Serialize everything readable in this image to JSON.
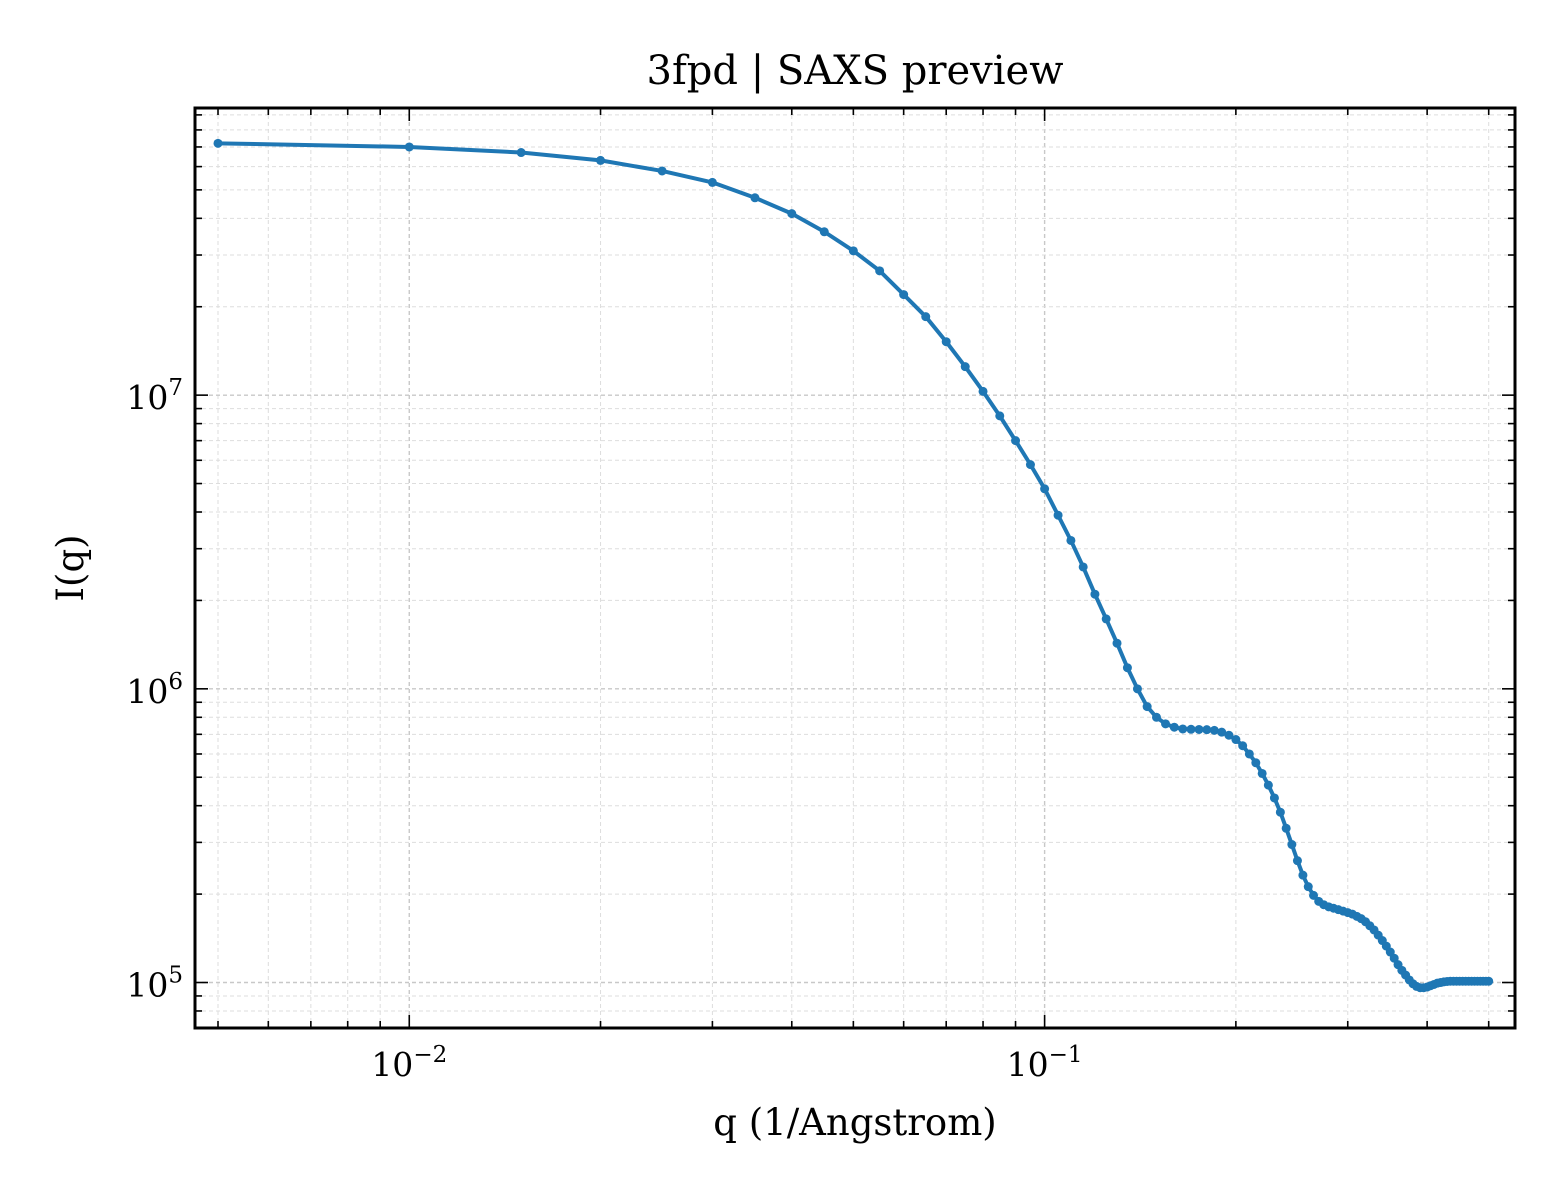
{
  "chart_data": {
    "type": "line",
    "title": "3fpd | SAXS preview",
    "xlabel": "q (1/Angstrom)",
    "ylabel": "I(q)",
    "xscale": "log",
    "yscale": "log",
    "xlim": [
      0.0046,
      0.55
    ],
    "ylim": [
      70000,
      95000000
    ],
    "grid": true,
    "grid_style": "dashed, major and minor",
    "legend": "none",
    "x_ticks": [
      {
        "base": "10",
        "exp": "−2"
      },
      {
        "base": "10",
        "exp": "−1"
      }
    ],
    "y_ticks": [
      {
        "base": "10",
        "exp": "5"
      },
      {
        "base": "10",
        "exp": "6"
      },
      {
        "base": "10",
        "exp": "7"
      }
    ],
    "color": "#1f77b4",
    "series": [
      {
        "x": [
          0.005,
          0.01,
          0.015,
          0.02,
          0.025,
          0.03,
          0.035,
          0.04,
          0.045,
          0.05,
          0.055,
          0.06,
          0.065,
          0.07,
          0.075,
          0.08,
          0.085,
          0.09,
          0.095,
          0.1,
          0.105,
          0.11,
          0.115,
          0.12,
          0.125,
          0.13,
          0.135,
          0.14,
          0.145,
          0.15,
          0.155,
          0.16,
          0.165,
          0.17,
          0.175,
          0.18,
          0.185,
          0.19,
          0.195,
          0.2,
          0.205,
          0.21,
          0.215,
          0.22,
          0.225,
          0.23,
          0.235,
          0.24,
          0.245,
          0.25,
          0.255,
          0.26,
          0.265,
          0.27,
          0.275,
          0.28,
          0.285,
          0.29,
          0.295,
          0.3,
          0.305,
          0.31,
          0.315,
          0.32,
          0.325,
          0.33,
          0.335,
          0.34,
          0.345,
          0.35,
          0.355,
          0.36,
          0.365,
          0.37,
          0.375,
          0.38,
          0.385,
          0.39,
          0.395,
          0.4,
          0.405,
          0.41,
          0.415,
          0.42,
          0.425,
          0.43,
          0.435,
          0.44,
          0.445,
          0.45,
          0.455,
          0.46,
          0.465,
          0.47,
          0.475,
          0.48,
          0.485,
          0.49,
          0.495,
          0.5
        ],
        "y": [
          72000000,
          70000000,
          67000000,
          63000000,
          58000000,
          53000000,
          47000000,
          41500000,
          36000000,
          31000000,
          26500000,
          22000000,
          18500000,
          15200000,
          12500000,
          10300000,
          8500000,
          7000000,
          5800000,
          4800000,
          3900000,
          3200000,
          2600000,
          2100000,
          1730000,
          1430000,
          1180000,
          1000000,
          870000,
          800000,
          760000,
          740000,
          730000,
          728000,
          727000,
          726000,
          722000,
          712000,
          695000,
          672000,
          640000,
          600000,
          560000,
          515000,
          470000,
          425000,
          380000,
          335000,
          295000,
          260000,
          232000,
          212000,
          198000,
          189000,
          184000,
          181000,
          179000,
          177000,
          175000,
          173000,
          171000,
          168000,
          165000,
          161000,
          156000,
          151000,
          145000,
          139000,
          133000,
          127000,
          121000,
          115000,
          110000,
          106000,
          102000,
          99000,
          97000,
          96000,
          96000,
          96500,
          97500,
          98500,
          99500,
          100000,
          100500,
          100800,
          101000,
          101000,
          101000,
          101000,
          101000,
          101000,
          101000,
          101000,
          101000,
          101000,
          101000,
          101000,
          101000,
          101000
        ]
      }
    ]
  }
}
